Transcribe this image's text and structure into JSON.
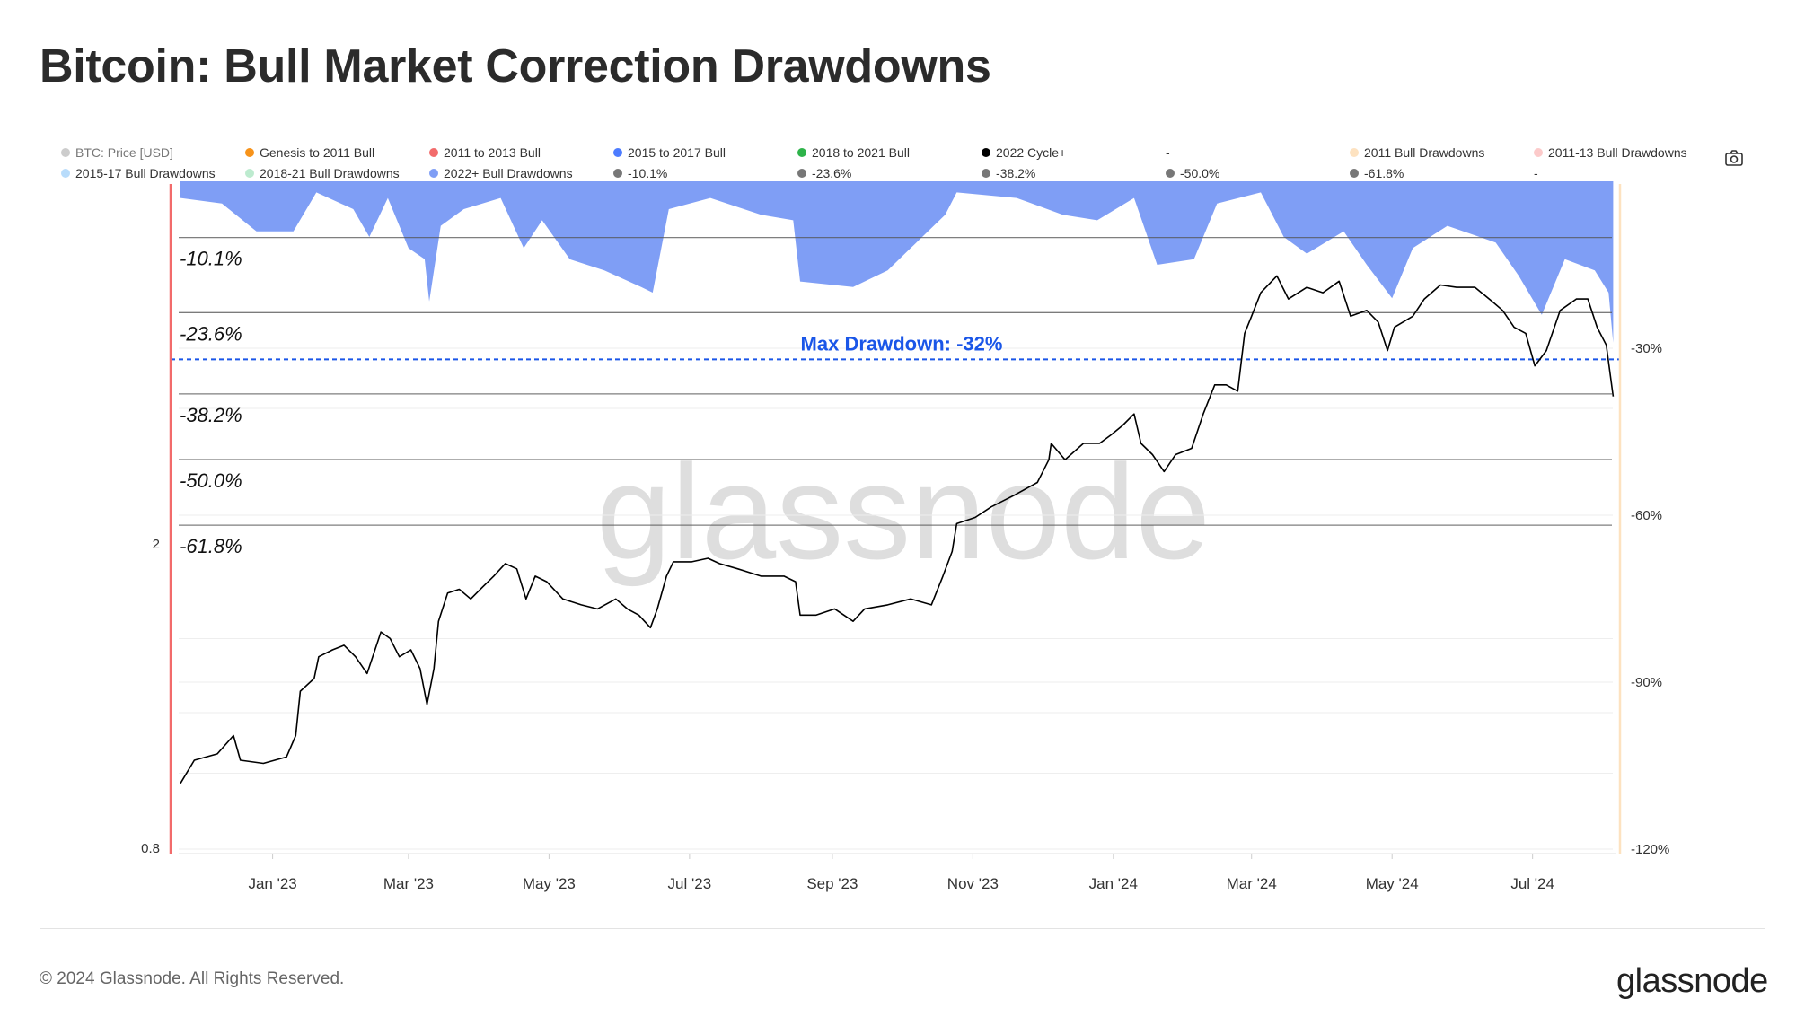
{
  "title": "Bitcoin: Bull Market Correction Drawdowns",
  "legend": [
    {
      "label": "BTC: Price [USD]",
      "color": "#cccccc",
      "disabled": true
    },
    {
      "label": "Genesis to 2011 Bull",
      "color": "#f7931a"
    },
    {
      "label": "2011 to 2013 Bull",
      "color": "#f26b6b"
    },
    {
      "label": "2015 to 2017 Bull",
      "color": "#4d7cff"
    },
    {
      "label": "2018 to 2021 Bull",
      "color": "#2eb34a"
    },
    {
      "label": "2022 Cycle+",
      "color": "#000000"
    },
    {
      "label": "-",
      "color": ""
    },
    {
      "label": "2011 Bull Drawdowns",
      "color": "#fde2c0"
    },
    {
      "label": "2011-13 Bull Drawdowns",
      "color": "#fccaca"
    },
    {
      "label": "2015-17 Bull Drawdowns",
      "color": "#b8dcfb"
    },
    {
      "label": "2018-21 Bull Drawdowns",
      "color": "#bdebcf"
    },
    {
      "label": "2022+ Bull Drawdowns",
      "color": "#7f9ef5"
    },
    {
      "label": "-10.1%",
      "color": "#777777"
    },
    {
      "label": "-23.6%",
      "color": "#777777"
    },
    {
      "label": "-38.2%",
      "color": "#777777"
    },
    {
      "label": "-50.0%",
      "color": "#777777"
    },
    {
      "label": "-61.8%",
      "color": "#777777"
    },
    {
      "label": "-",
      "color": ""
    }
  ],
  "camera_icon": "camera-icon",
  "watermark": "glassnode",
  "footer": "© 2024 Glassnode. All Rights Reserved.",
  "logo": "glassnode",
  "chart_data": {
    "type": "line",
    "title": "Bitcoin: Bull Market Correction Drawdowns",
    "x_range": [
      "2022-11-22",
      "2024-08-06"
    ],
    "x_ticks": [
      {
        "date": "2023-01-01",
        "label": "Jan '23"
      },
      {
        "date": "2023-03-01",
        "label": "Mar '23"
      },
      {
        "date": "2023-05-01",
        "label": "May '23"
      },
      {
        "date": "2023-07-01",
        "label": "Jul '23"
      },
      {
        "date": "2023-09-01",
        "label": "Sep '23"
      },
      {
        "date": "2023-11-01",
        "label": "Nov '23"
      },
      {
        "date": "2024-01-01",
        "label": "Jan '24"
      },
      {
        "date": "2024-03-01",
        "label": "Mar '24"
      },
      {
        "date": "2024-05-01",
        "label": "May '24"
      },
      {
        "date": "2024-07-01",
        "label": "Jul '24"
      }
    ],
    "y_left": {
      "scale": "log",
      "ticks": [
        {
          "value": 2,
          "label": "2"
        },
        {
          "value": 0.8,
          "label": "0.8"
        }
      ]
    },
    "y_right": {
      "scale": "linear",
      "ticks": [
        {
          "value": -30,
          "label": "-30%"
        },
        {
          "value": -60,
          "label": "-60%"
        },
        {
          "value": -90,
          "label": "-90%"
        },
        {
          "value": -120,
          "label": "-120%"
        }
      ],
      "range": [
        0,
        -120
      ]
    },
    "grid": true,
    "fib_levels": [
      {
        "value": -10.1,
        "label": "-10.1%"
      },
      {
        "value": -23.6,
        "label": "-23.6%"
      },
      {
        "value": -38.2,
        "label": "-38.2%"
      },
      {
        "value": -50.0,
        "label": "-50.0%"
      },
      {
        "value": -61.8,
        "label": "-61.8%"
      }
    ],
    "max_drawdown": {
      "value": -32,
      "label": "Max Drawdown: -32%",
      "color": "#1a56e8"
    },
    "series": [
      {
        "name": "2022 Cycle+",
        "axis": "left",
        "color": "#000000",
        "points": [
          [
            "2022-11-22",
            0.97
          ],
          [
            "2022-11-28",
            1.04
          ],
          [
            "2022-12-08",
            1.06
          ],
          [
            "2022-12-15",
            1.12
          ],
          [
            "2022-12-18",
            1.04
          ],
          [
            "2022-12-28",
            1.03
          ],
          [
            "2023-01-07",
            1.05
          ],
          [
            "2023-01-11",
            1.12
          ],
          [
            "2023-01-13",
            1.28
          ],
          [
            "2023-01-19",
            1.33
          ],
          [
            "2023-01-21",
            1.42
          ],
          [
            "2023-01-27",
            1.45
          ],
          [
            "2023-02-01",
            1.47
          ],
          [
            "2023-02-06",
            1.42
          ],
          [
            "2023-02-11",
            1.35
          ],
          [
            "2023-02-17",
            1.53
          ],
          [
            "2023-02-21",
            1.5
          ],
          [
            "2023-02-25",
            1.42
          ],
          [
            "2023-03-02",
            1.45
          ],
          [
            "2023-03-06",
            1.37
          ],
          [
            "2023-03-09",
            1.23
          ],
          [
            "2023-03-12",
            1.37
          ],
          [
            "2023-03-14",
            1.58
          ],
          [
            "2023-03-18",
            1.72
          ],
          [
            "2023-03-23",
            1.74
          ],
          [
            "2023-03-28",
            1.69
          ],
          [
            "2023-04-02",
            1.75
          ],
          [
            "2023-04-07",
            1.81
          ],
          [
            "2023-04-12",
            1.88
          ],
          [
            "2023-04-17",
            1.85
          ],
          [
            "2023-04-21",
            1.69
          ],
          [
            "2023-04-25",
            1.81
          ],
          [
            "2023-04-30",
            1.78
          ],
          [
            "2023-05-07",
            1.69
          ],
          [
            "2023-05-15",
            1.66
          ],
          [
            "2023-05-22",
            1.64
          ],
          [
            "2023-05-30",
            1.69
          ],
          [
            "2023-06-04",
            1.64
          ],
          [
            "2023-06-09",
            1.61
          ],
          [
            "2023-06-14",
            1.55
          ],
          [
            "2023-06-17",
            1.64
          ],
          [
            "2023-06-21",
            1.81
          ],
          [
            "2023-06-24",
            1.89
          ],
          [
            "2023-07-02",
            1.89
          ],
          [
            "2023-07-09",
            1.91
          ],
          [
            "2023-07-14",
            1.88
          ],
          [
            "2023-07-22",
            1.85
          ],
          [
            "2023-08-01",
            1.81
          ],
          [
            "2023-08-11",
            1.81
          ],
          [
            "2023-08-16",
            1.78
          ],
          [
            "2023-08-18",
            1.61
          ],
          [
            "2023-08-25",
            1.61
          ],
          [
            "2023-09-02",
            1.64
          ],
          [
            "2023-09-10",
            1.58
          ],
          [
            "2023-09-15",
            1.64
          ],
          [
            "2023-09-25",
            1.66
          ],
          [
            "2023-10-05",
            1.69
          ],
          [
            "2023-10-14",
            1.66
          ],
          [
            "2023-10-19",
            1.81
          ],
          [
            "2023-10-23",
            1.95
          ],
          [
            "2023-10-25",
            2.12
          ],
          [
            "2023-11-02",
            2.16
          ],
          [
            "2023-11-09",
            2.23
          ],
          [
            "2023-11-19",
            2.31
          ],
          [
            "2023-11-29",
            2.4
          ],
          [
            "2023-12-04",
            2.57
          ],
          [
            "2023-12-05",
            2.7
          ],
          [
            "2023-12-11",
            2.57
          ],
          [
            "2023-12-19",
            2.7
          ],
          [
            "2023-12-26",
            2.7
          ],
          [
            "2023-12-31",
            2.77
          ],
          [
            "2024-01-05",
            2.85
          ],
          [
            "2024-01-10",
            2.95
          ],
          [
            "2024-01-13",
            2.7
          ],
          [
            "2024-01-18",
            2.61
          ],
          [
            "2024-01-23",
            2.48
          ],
          [
            "2024-01-28",
            2.61
          ],
          [
            "2024-02-04",
            2.66
          ],
          [
            "2024-02-09",
            2.95
          ],
          [
            "2024-02-14",
            3.22
          ],
          [
            "2024-02-19",
            3.22
          ],
          [
            "2024-02-24",
            3.16
          ],
          [
            "2024-02-27",
            3.76
          ],
          [
            "2024-03-01",
            3.96
          ],
          [
            "2024-03-05",
            4.25
          ],
          [
            "2024-03-12",
            4.47
          ],
          [
            "2024-03-17",
            4.17
          ],
          [
            "2024-03-25",
            4.32
          ],
          [
            "2024-04-01",
            4.25
          ],
          [
            "2024-04-08",
            4.4
          ],
          [
            "2024-04-13",
            3.96
          ],
          [
            "2024-04-20",
            4.03
          ],
          [
            "2024-04-25",
            3.89
          ],
          [
            "2024-04-29",
            3.57
          ],
          [
            "2024-05-02",
            3.83
          ],
          [
            "2024-05-10",
            3.96
          ],
          [
            "2024-05-15",
            4.17
          ],
          [
            "2024-05-22",
            4.35
          ],
          [
            "2024-05-29",
            4.32
          ],
          [
            "2024-06-06",
            4.32
          ],
          [
            "2024-06-13",
            4.15
          ],
          [
            "2024-06-18",
            4.03
          ],
          [
            "2024-06-23",
            3.83
          ],
          [
            "2024-06-28",
            3.76
          ],
          [
            "2024-07-02",
            3.41
          ],
          [
            "2024-07-07",
            3.57
          ],
          [
            "2024-07-13",
            4.03
          ],
          [
            "2024-07-20",
            4.17
          ],
          [
            "2024-07-25",
            4.17
          ],
          [
            "2024-07-29",
            3.83
          ],
          [
            "2024-08-02",
            3.63
          ],
          [
            "2024-08-05",
            3.11
          ]
        ]
      },
      {
        "name": "2022+ Bull Drawdowns",
        "axis": "right",
        "type": "area",
        "color": "#7f9ef5",
        "points": [
          [
            "2022-11-22",
            -3
          ],
          [
            "2022-12-10",
            -4
          ],
          [
            "2022-12-25",
            -9
          ],
          [
            "2023-01-10",
            -9
          ],
          [
            "2023-01-20",
            -2
          ],
          [
            "2023-02-05",
            -5
          ],
          [
            "2023-02-12",
            -10
          ],
          [
            "2023-02-20",
            -3
          ],
          [
            "2023-03-01",
            -12
          ],
          [
            "2023-03-08",
            -14
          ],
          [
            "2023-03-10",
            -21.6
          ],
          [
            "2023-03-15",
            -8
          ],
          [
            "2023-03-25",
            -5
          ],
          [
            "2023-04-10",
            -3
          ],
          [
            "2023-04-20",
            -12
          ],
          [
            "2023-04-28",
            -7
          ],
          [
            "2023-05-10",
            -14
          ],
          [
            "2023-05-25",
            -16
          ],
          [
            "2023-06-10",
            -19
          ],
          [
            "2023-06-15",
            -20
          ],
          [
            "2023-06-22",
            -5
          ],
          [
            "2023-07-10",
            -3
          ],
          [
            "2023-08-01",
            -6
          ],
          [
            "2023-08-15",
            -7
          ],
          [
            "2023-08-18",
            -18
          ],
          [
            "2023-09-10",
            -19
          ],
          [
            "2023-09-25",
            -16
          ],
          [
            "2023-10-05",
            -12
          ],
          [
            "2023-10-20",
            -6
          ],
          [
            "2023-10-25",
            -2
          ],
          [
            "2023-11-20",
            -3
          ],
          [
            "2023-12-10",
            -6
          ],
          [
            "2023-12-25",
            -7
          ],
          [
            "2024-01-10",
            -3
          ],
          [
            "2024-01-20",
            -15
          ],
          [
            "2024-02-05",
            -14
          ],
          [
            "2024-02-15",
            -4
          ],
          [
            "2024-03-05",
            -2
          ],
          [
            "2024-03-15",
            -10
          ],
          [
            "2024-03-25",
            -13
          ],
          [
            "2024-04-10",
            -9
          ],
          [
            "2024-04-20",
            -15
          ],
          [
            "2024-05-01",
            -21
          ],
          [
            "2024-05-10",
            -12
          ],
          [
            "2024-05-25",
            -8
          ],
          [
            "2024-06-15",
            -11
          ],
          [
            "2024-06-25",
            -17
          ],
          [
            "2024-07-05",
            -24
          ],
          [
            "2024-07-15",
            -14
          ],
          [
            "2024-07-28",
            -16
          ],
          [
            "2024-08-03",
            -20
          ],
          [
            "2024-08-05",
            -29
          ]
        ]
      }
    ]
  }
}
